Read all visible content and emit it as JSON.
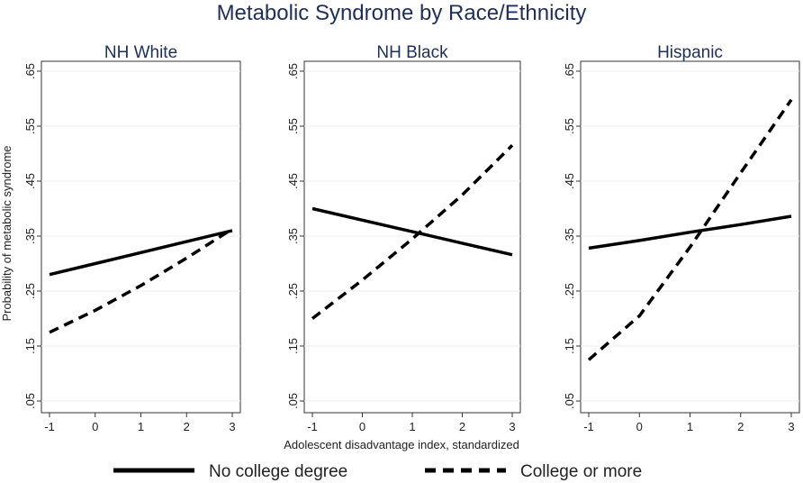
{
  "figure": {
    "title": "Metabolic Syndrome by Race/Ethnicity",
    "xlabel": "Adolescent disadvantage index, standardized",
    "ylabel": "Probability of metabolic syndrome"
  },
  "legend": {
    "placement": "bottom",
    "entries": [
      {
        "name": "No college degree",
        "style": "solid"
      },
      {
        "name": "College or more",
        "style": "dashed"
      }
    ]
  },
  "colors": {
    "title": "#1f2f5c",
    "line": "#000000"
  },
  "chart_data": [
    {
      "type": "line",
      "title": "NH White",
      "xlim": [
        -1,
        3
      ],
      "ylim": [
        0.05,
        0.65
      ],
      "xticks": [
        "-1",
        "0",
        "1",
        "2",
        "3"
      ],
      "yticks": [
        ".05",
        ".15",
        ".25",
        ".35",
        ".45",
        ".55",
        ".65"
      ],
      "series": [
        {
          "name": "No college degree",
          "x": [
            -1,
            0,
            1,
            2,
            3
          ],
          "y": [
            0.28,
            0.3,
            0.32,
            0.34,
            0.36
          ]
        },
        {
          "name": "College or more",
          "x": [
            -1,
            0,
            1,
            2,
            3
          ],
          "y": [
            0.175,
            0.215,
            0.26,
            0.31,
            0.363
          ]
        }
      ]
    },
    {
      "type": "line",
      "title": "NH Black",
      "xlim": [
        -1,
        3
      ],
      "ylim": [
        0.05,
        0.65
      ],
      "xticks": [
        "-1",
        "0",
        "1",
        "2",
        "3"
      ],
      "yticks": [
        ".05",
        ".15",
        ".25",
        ".35",
        ".45",
        ".55",
        ".65"
      ],
      "series": [
        {
          "name": "No college degree",
          "x": [
            -1,
            0,
            1,
            2,
            3
          ],
          "y": [
            0.4,
            0.379,
            0.358,
            0.337,
            0.316
          ]
        },
        {
          "name": "College or more",
          "x": [
            -1,
            0,
            1,
            2,
            3
          ],
          "y": [
            0.2,
            0.27,
            0.345,
            0.425,
            0.515
          ]
        }
      ]
    },
    {
      "type": "line",
      "title": "Hispanic",
      "xlim": [
        -1,
        3
      ],
      "ylim": [
        0.05,
        0.65
      ],
      "xticks": [
        "-1",
        "0",
        "1",
        "2",
        "3"
      ],
      "yticks": [
        ".05",
        ".15",
        ".25",
        ".35",
        ".45",
        ".55",
        ".65"
      ],
      "series": [
        {
          "name": "No college degree",
          "x": [
            -1,
            0,
            1,
            2,
            3
          ],
          "y": [
            0.328,
            0.342,
            0.357,
            0.371,
            0.386
          ]
        },
        {
          "name": "College or more",
          "x": [
            -1,
            0,
            1,
            2,
            3
          ],
          "y": [
            0.125,
            0.205,
            0.33,
            0.465,
            0.598
          ]
        }
      ]
    }
  ]
}
